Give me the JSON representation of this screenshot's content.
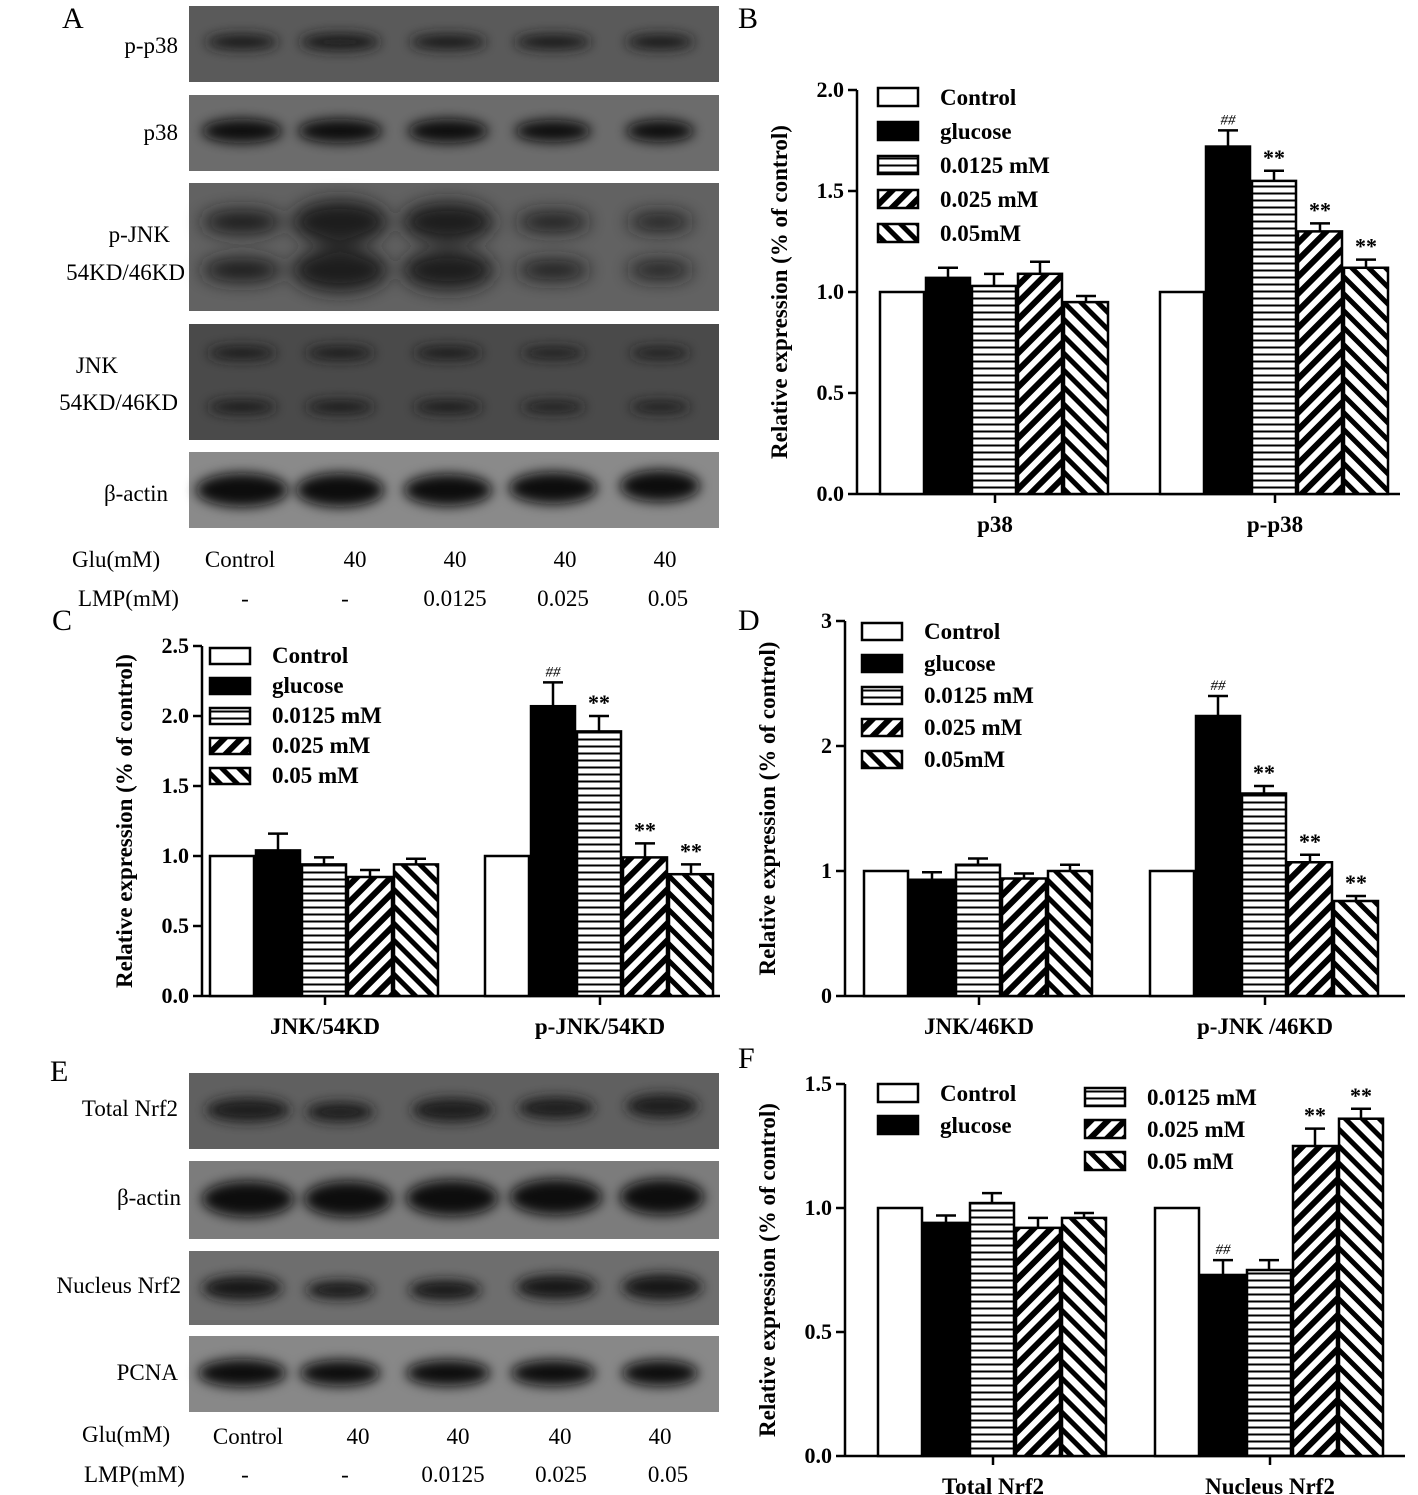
{
  "panels": {
    "A": {
      "letter": "A",
      "blot_rows": [
        "p-p38",
        "p38",
        "p-JNK",
        "54KD/46KD",
        "JNK",
        "54KD/46KD",
        "β-actin"
      ],
      "glu_label": "Glu(mM)",
      "glu_values": [
        "Control",
        "40",
        "40",
        "40",
        "40"
      ],
      "lmp_label": "LMP(mM)",
      "lmp_values": [
        "-",
        "-",
        "0.0125",
        "0.025",
        "0.05"
      ]
    },
    "E": {
      "letter": "E",
      "blot_rows": [
        "Total Nrf2",
        "β-actin",
        "Nucleus Nrf2",
        "PCNA"
      ],
      "glu_label": "Glu(mM)",
      "glu_values": [
        "Control",
        "40",
        "40",
        "40",
        "40"
      ],
      "lmp_label": "LMP(mM)",
      "lmp_values": [
        "-",
        "-",
        "0.0125",
        "0.025",
        "0.05"
      ]
    }
  },
  "chart_data": [
    {
      "panel": "B",
      "type": "bar",
      "ylabel": "Relative expression (% of control)",
      "ylim": [
        0,
        2.0
      ],
      "yticks": [
        "0.0",
        "0.5",
        "1.0",
        "1.5",
        "2.0"
      ],
      "categories": [
        "p38",
        "p-p38"
      ],
      "legend": [
        "Control",
        "glucose",
        "0.0125 mM",
        "0.025 mM",
        "0.05mM"
      ],
      "series": [
        {
          "name": "Control",
          "values": [
            1.0,
            1.0
          ],
          "errors": [
            0,
            0
          ],
          "marks": [
            "",
            ""
          ]
        },
        {
          "name": "glucose",
          "values": [
            1.07,
            1.72
          ],
          "errors": [
            0.05,
            0.08
          ],
          "marks": [
            "",
            "##"
          ]
        },
        {
          "name": "0.0125 mM",
          "values": [
            1.03,
            1.55
          ],
          "errors": [
            0.06,
            0.05
          ],
          "marks": [
            "",
            "**"
          ]
        },
        {
          "name": "0.025 mM",
          "values": [
            1.09,
            1.3
          ],
          "errors": [
            0.06,
            0.04
          ],
          "marks": [
            "",
            "**"
          ]
        },
        {
          "name": "0.05mM",
          "values": [
            0.95,
            1.12
          ],
          "errors": [
            0.03,
            0.04
          ],
          "marks": [
            "",
            "**"
          ]
        }
      ]
    },
    {
      "panel": "C",
      "type": "bar",
      "ylabel": "Relative expression (% of control)",
      "ylim": [
        0,
        2.5
      ],
      "yticks": [
        "0.0",
        "0.5",
        "1.0",
        "1.5",
        "2.0",
        "2.5"
      ],
      "categories": [
        "JNK/54KD",
        "p-JNK/54KD"
      ],
      "legend": [
        "Control",
        "glucose",
        "0.0125 mM",
        "0.025 mM",
        "0.05 mM"
      ],
      "series": [
        {
          "name": "Control",
          "values": [
            1.0,
            1.0
          ],
          "errors": [
            0,
            0
          ],
          "marks": [
            "",
            ""
          ]
        },
        {
          "name": "glucose",
          "values": [
            1.04,
            2.07
          ],
          "errors": [
            0.12,
            0.17
          ],
          "marks": [
            "",
            "##"
          ]
        },
        {
          "name": "0.0125 mM",
          "values": [
            0.94,
            1.89
          ],
          "errors": [
            0.05,
            0.11
          ],
          "marks": [
            "",
            "**"
          ]
        },
        {
          "name": "0.025 mM",
          "values": [
            0.85,
            0.99
          ],
          "errors": [
            0.05,
            0.1
          ],
          "marks": [
            "",
            "**"
          ]
        },
        {
          "name": "0.05 mM",
          "values": [
            0.94,
            0.87
          ],
          "errors": [
            0.04,
            0.07
          ],
          "marks": [
            "",
            "**"
          ]
        }
      ]
    },
    {
      "panel": "D",
      "type": "bar",
      "ylabel": "Relative expression (% of control)",
      "ylim": [
        0,
        3
      ],
      "yticks": [
        "0",
        "1",
        "2",
        "3"
      ],
      "categories": [
        "JNK/46KD",
        "p-JNK /46KD"
      ],
      "legend": [
        "Control",
        "glucose",
        "0.0125 mM",
        "0.025 mM",
        "0.05mM"
      ],
      "series": [
        {
          "name": "Control",
          "values": [
            1.0,
            1.0
          ],
          "errors": [
            0,
            0
          ],
          "marks": [
            "",
            ""
          ]
        },
        {
          "name": "glucose",
          "values": [
            0.93,
            2.24
          ],
          "errors": [
            0.06,
            0.16
          ],
          "marks": [
            "",
            "##"
          ]
        },
        {
          "name": "0.0125 mM",
          "values": [
            1.05,
            1.62
          ],
          "errors": [
            0.05,
            0.06
          ],
          "marks": [
            "",
            "**"
          ]
        },
        {
          "name": "0.025 mM",
          "values": [
            0.94,
            1.07
          ],
          "errors": [
            0.04,
            0.06
          ],
          "marks": [
            "",
            "**"
          ]
        },
        {
          "name": "0.05mM",
          "values": [
            1.0,
            0.76
          ],
          "errors": [
            0.05,
            0.04
          ],
          "marks": [
            "",
            "**"
          ]
        }
      ]
    },
    {
      "panel": "F",
      "type": "bar",
      "ylabel": "Relative expression (% of control)",
      "ylim": [
        0,
        1.5
      ],
      "yticks": [
        "0.0",
        "0.5",
        "1.0",
        "1.5"
      ],
      "categories": [
        "Total Nrf2",
        "Nucleus Nrf2"
      ],
      "legend": [
        "Control",
        "glucose",
        "0.0125 mM",
        "0.025 mM",
        "0.05 mM"
      ],
      "series": [
        {
          "name": "Control",
          "values": [
            1.0,
            1.0
          ],
          "errors": [
            0,
            0
          ],
          "marks": [
            "",
            ""
          ]
        },
        {
          "name": "glucose",
          "values": [
            0.94,
            0.73
          ],
          "errors": [
            0.03,
            0.06
          ],
          "marks": [
            "",
            "##"
          ]
        },
        {
          "name": "0.0125 mM",
          "values": [
            1.02,
            0.75
          ],
          "errors": [
            0.04,
            0.04
          ],
          "marks": [
            "",
            ""
          ]
        },
        {
          "name": "0.025 mM",
          "values": [
            0.92,
            1.25
          ],
          "errors": [
            0.04,
            0.07
          ],
          "marks": [
            "",
            "**"
          ]
        },
        {
          "name": "0.05 mM",
          "values": [
            0.96,
            1.36
          ],
          "errors": [
            0.02,
            0.04
          ],
          "marks": [
            "",
            "**"
          ]
        }
      ]
    }
  ]
}
